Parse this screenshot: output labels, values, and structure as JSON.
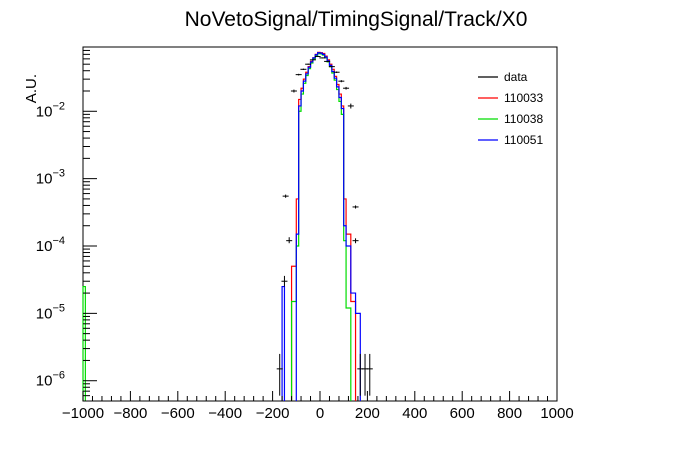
{
  "chart_data": {
    "type": "histogram",
    "title": "NoVetoSignal/TimingSignal/Track/X0",
    "xlabel": "",
    "ylabel": "A.U.",
    "xlim": [
      -1000,
      1000
    ],
    "ylim": [
      5e-07,
      0.09
    ],
    "yscale": "log",
    "grid": false,
    "legend_position": "top-right",
    "x_ticks": [
      {
        "value": -1000,
        "label": "−1000"
      },
      {
        "value": -800,
        "label": "−800"
      },
      {
        "value": -600,
        "label": "−600"
      },
      {
        "value": -400,
        "label": "−400"
      },
      {
        "value": -200,
        "label": "−200"
      },
      {
        "value": 0,
        "label": "0"
      },
      {
        "value": 200,
        "label": "200"
      },
      {
        "value": 400,
        "label": "400"
      },
      {
        "value": 600,
        "label": "600"
      },
      {
        "value": 800,
        "label": "800"
      },
      {
        "value": 1000,
        "label": "1000"
      }
    ],
    "y_ticks": [
      {
        "value": 1e-06,
        "base": "10",
        "exp": "−6"
      },
      {
        "value": 1e-05,
        "base": "10",
        "exp": "−5"
      },
      {
        "value": 0.0001,
        "base": "10",
        "exp": "−4"
      },
      {
        "value": 0.001,
        "base": "10",
        "exp": "−3"
      },
      {
        "value": 0.01,
        "base": "10",
        "exp": "−2"
      }
    ],
    "series": [
      {
        "name": "data",
        "color": "#000000",
        "style": "points",
        "points": [
          {
            "x": -170,
            "y": 1.5e-06,
            "err": [
              6e-07,
              2.5e-06
            ]
          },
          {
            "x": -150,
            "y": 3e-05,
            "err": [
              2.5e-05,
              3.6e-05
            ]
          },
          {
            "x": -130,
            "y": 0.00012,
            "err": [
              0.00011,
              0.000135
            ]
          },
          {
            "x": -110,
            "y": 0.02,
            "err": [
              0.019,
              0.021
            ]
          },
          {
            "x": -90,
            "y": 0.035,
            "err": [
              0.034,
              0.036
            ]
          },
          {
            "x": -70,
            "y": 0.042,
            "err": [
              0.041,
              0.043
            ]
          },
          {
            "x": -50,
            "y": 0.05,
            "err": [
              0.049,
              0.051
            ]
          },
          {
            "x": -30,
            "y": 0.058,
            "err": [
              0.057,
              0.059
            ]
          },
          {
            "x": -10,
            "y": 0.065,
            "err": [
              0.064,
              0.066
            ]
          },
          {
            "x": 10,
            "y": 0.062,
            "err": [
              0.061,
              0.063
            ]
          },
          {
            "x": 30,
            "y": 0.055,
            "err": [
              0.054,
              0.056
            ]
          },
          {
            "x": 50,
            "y": 0.046,
            "err": [
              0.045,
              0.047
            ]
          },
          {
            "x": 70,
            "y": 0.038,
            "err": [
              0.037,
              0.039
            ]
          },
          {
            "x": 90,
            "y": 0.028,
            "err": [
              0.027,
              0.029
            ]
          },
          {
            "x": 110,
            "y": 0.022,
            "err": [
              0.021,
              0.023
            ]
          },
          {
            "x": 130,
            "y": 0.012,
            "err": [
              0.011,
              0.013
            ]
          },
          {
            "x": -145,
            "y": 0.00055,
            "err": [
              0.00052,
              0.00058
            ]
          },
          {
            "x": 150,
            "y": 0.00038,
            "err": [
              0.00036,
              0.0004
            ]
          },
          {
            "x": 150,
            "y": 0.00012,
            "err": [
              0.00011,
              0.00013
            ]
          },
          {
            "x": 170,
            "y": 1.5e-06,
            "err": [
              6e-07,
              2.5e-06
            ]
          },
          {
            "x": 190,
            "y": 1.5e-06,
            "err": [
              6e-07,
              2.5e-06
            ]
          },
          {
            "x": 210,
            "y": 1.5e-06,
            "err": [
              6e-07,
              2.5e-06
            ]
          }
        ]
      },
      {
        "name": "110033",
        "color": "#ff0000",
        "style": "step",
        "bins": [
          {
            "x0": -120,
            "x1": -100,
            "y": 5e-05
          },
          {
            "x0": -100,
            "x1": -90,
            "y": 0.0005
          },
          {
            "x0": -90,
            "x1": -80,
            "y": 0.015
          },
          {
            "x0": -80,
            "x1": -70,
            "y": 0.022
          },
          {
            "x0": -70,
            "x1": -60,
            "y": 0.03
          },
          {
            "x0": -60,
            "x1": -50,
            "y": 0.038
          },
          {
            "x0": -50,
            "x1": -40,
            "y": 0.046
          },
          {
            "x0": -40,
            "x1": -30,
            "y": 0.055
          },
          {
            "x0": -30,
            "x1": -20,
            "y": 0.062
          },
          {
            "x0": -20,
            "x1": -10,
            "y": 0.07
          },
          {
            "x0": -10,
            "x1": 0,
            "y": 0.075
          },
          {
            "x0": 0,
            "x1": 10,
            "y": 0.074
          },
          {
            "x0": 10,
            "x1": 20,
            "y": 0.072
          },
          {
            "x0": 20,
            "x1": 30,
            "y": 0.066
          },
          {
            "x0": 30,
            "x1": 40,
            "y": 0.058
          },
          {
            "x0": 40,
            "x1": 50,
            "y": 0.05
          },
          {
            "x0": 50,
            "x1": 60,
            "y": 0.042
          },
          {
            "x0": 60,
            "x1": 70,
            "y": 0.033
          },
          {
            "x0": 70,
            "x1": 80,
            "y": 0.025
          },
          {
            "x0": 80,
            "x1": 90,
            "y": 0.018
          },
          {
            "x0": 90,
            "x1": 100,
            "y": 0.012
          },
          {
            "x0": 100,
            "x1": 110,
            "y": 0.0005
          },
          {
            "x0": 110,
            "x1": 130,
            "y": 0.00015
          },
          {
            "x0": 130,
            "x1": 150,
            "y": 1.5e-05
          }
        ]
      },
      {
        "name": "110038",
        "color": "#00dd00",
        "style": "step",
        "bins": [
          {
            "x0": -1000,
            "x1": -990,
            "y": 2.5e-05
          },
          {
            "x0": -120,
            "x1": -100,
            "y": 1.5e-05
          },
          {
            "x0": -100,
            "x1": -90,
            "y": 0.0001
          },
          {
            "x0": -90,
            "x1": -80,
            "y": 0.01
          },
          {
            "x0": -80,
            "x1": -70,
            "y": 0.018
          },
          {
            "x0": -70,
            "x1": -60,
            "y": 0.026
          },
          {
            "x0": -60,
            "x1": -50,
            "y": 0.034
          },
          {
            "x0": -50,
            "x1": -40,
            "y": 0.043
          },
          {
            "x0": -40,
            "x1": -30,
            "y": 0.052
          },
          {
            "x0": -30,
            "x1": -20,
            "y": 0.06
          },
          {
            "x0": -20,
            "x1": -10,
            "y": 0.067
          },
          {
            "x0": -10,
            "x1": 0,
            "y": 0.072
          },
          {
            "x0": 0,
            "x1": 10,
            "y": 0.071
          },
          {
            "x0": 10,
            "x1": 20,
            "y": 0.068
          },
          {
            "x0": 20,
            "x1": 30,
            "y": 0.062
          },
          {
            "x0": 30,
            "x1": 40,
            "y": 0.054
          },
          {
            "x0": 40,
            "x1": 50,
            "y": 0.046
          },
          {
            "x0": 50,
            "x1": 60,
            "y": 0.037
          },
          {
            "x0": 60,
            "x1": 70,
            "y": 0.029
          },
          {
            "x0": 70,
            "x1": 80,
            "y": 0.021
          },
          {
            "x0": 80,
            "x1": 90,
            "y": 0.014
          },
          {
            "x0": 90,
            "x1": 100,
            "y": 0.009
          },
          {
            "x0": 100,
            "x1": 110,
            "y": 0.00012
          },
          {
            "x0": 110,
            "x1": 130,
            "y": 1.2e-05
          }
        ]
      },
      {
        "name": "110051",
        "color": "#0000ff",
        "style": "step",
        "bins": [
          {
            "x0": -160,
            "x1": -150,
            "y": 2.5e-05
          },
          {
            "x0": -100,
            "x1": -90,
            "y": 0.00015
          },
          {
            "x0": -90,
            "x1": -80,
            "y": 0.012
          },
          {
            "x0": -80,
            "x1": -70,
            "y": 0.02
          },
          {
            "x0": -70,
            "x1": -60,
            "y": 0.028
          },
          {
            "x0": -60,
            "x1": -50,
            "y": 0.036
          },
          {
            "x0": -50,
            "x1": -40,
            "y": 0.045
          },
          {
            "x0": -40,
            "x1": -30,
            "y": 0.054
          },
          {
            "x0": -30,
            "x1": -20,
            "y": 0.062
          },
          {
            "x0": -20,
            "x1": -10,
            "y": 0.069
          },
          {
            "x0": -10,
            "x1": 0,
            "y": 0.074
          },
          {
            "x0": 0,
            "x1": 10,
            "y": 0.073
          },
          {
            "x0": 10,
            "x1": 20,
            "y": 0.07
          },
          {
            "x0": 20,
            "x1": 30,
            "y": 0.064
          },
          {
            "x0": 30,
            "x1": 40,
            "y": 0.056
          },
          {
            "x0": 40,
            "x1": 50,
            "y": 0.048
          },
          {
            "x0": 50,
            "x1": 60,
            "y": 0.039
          },
          {
            "x0": 60,
            "x1": 70,
            "y": 0.031
          },
          {
            "x0": 70,
            "x1": 80,
            "y": 0.023
          },
          {
            "x0": 80,
            "x1": 90,
            "y": 0.016
          },
          {
            "x0": 90,
            "x1": 100,
            "y": 0.011
          },
          {
            "x0": 100,
            "x1": 110,
            "y": 0.0002
          },
          {
            "x0": 110,
            "x1": 130,
            "y": 0.0001
          },
          {
            "x0": 130,
            "x1": 150,
            "y": 2e-05
          },
          {
            "x0": 150,
            "x1": 170,
            "y": 1e-05
          }
        ]
      }
    ]
  }
}
